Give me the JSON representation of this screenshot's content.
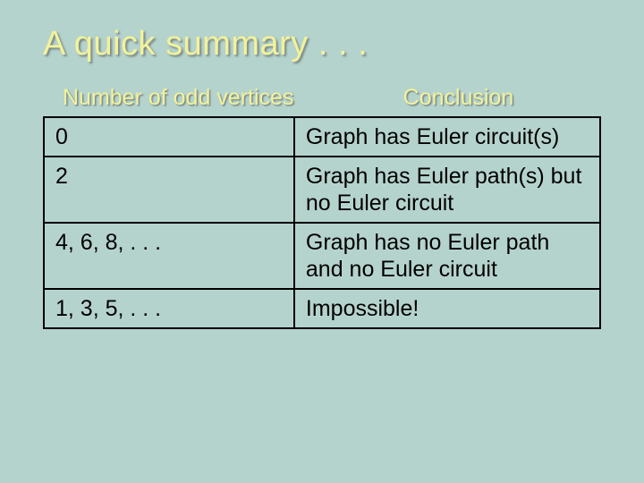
{
  "slide": {
    "title": "A quick summary . . .",
    "background_color": "#b5d3cd",
    "title_color": "#f2f29a",
    "header_color": "#f2f29a",
    "text_color": "#000000",
    "border_color": "#000000",
    "title_fontsize": 38,
    "header_fontsize": 25,
    "cell_fontsize": 25
  },
  "table": {
    "headers": {
      "left": "Number of odd vertices",
      "right": "Conclusion"
    },
    "column_widths": [
      "45%",
      "55%"
    ],
    "rows": [
      {
        "left": "0",
        "right": "Graph has Euler circuit(s)"
      },
      {
        "left": "2",
        "right": "Graph has Euler path(s) but no Euler circuit"
      },
      {
        "left": "4, 6, 8, . . .",
        "right": "Graph has no Euler path and no Euler circuit"
      },
      {
        "left": "1, 3, 5, . . .",
        "right": "Impossible!"
      }
    ]
  }
}
